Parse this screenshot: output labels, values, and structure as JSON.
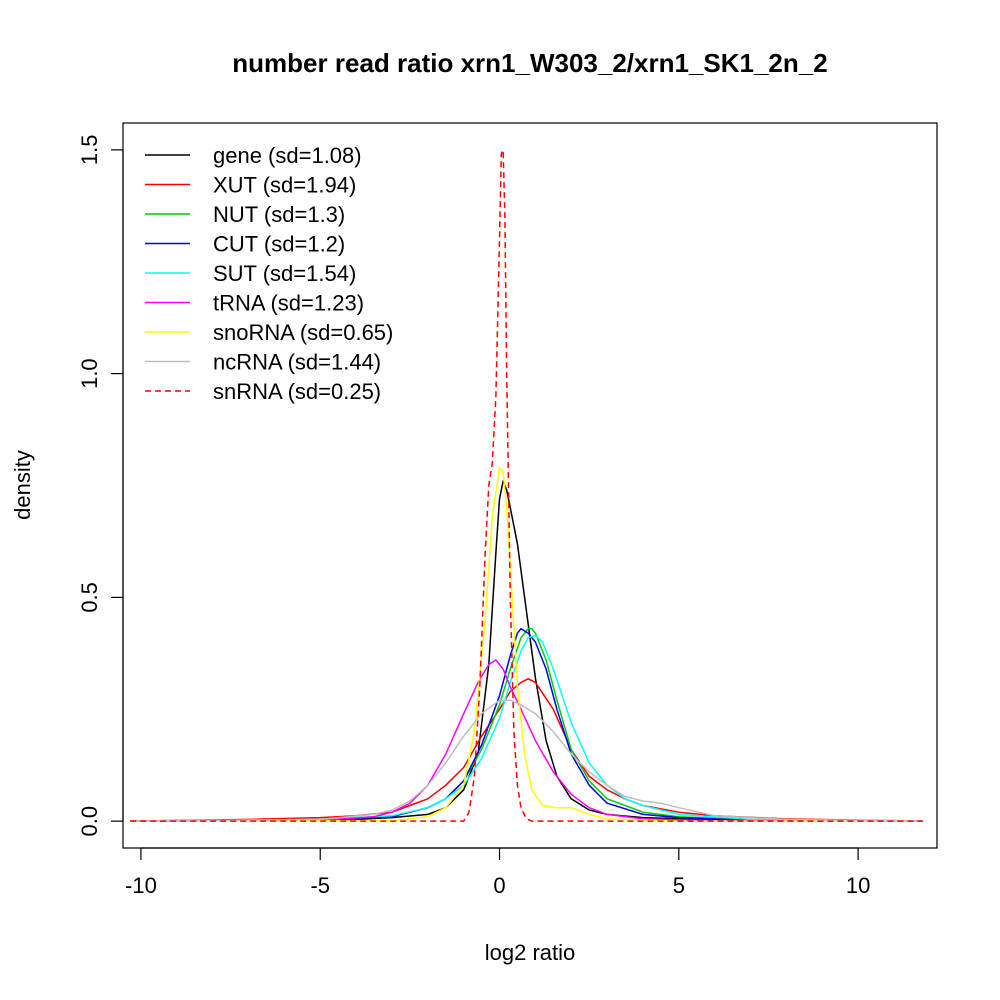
{
  "chart_data": {
    "type": "line",
    "title": "number read ratio xrn1_W303_2/xrn1_SK1_2n_2",
    "xlabel": "log2 ratio",
    "ylabel": "density",
    "xlim": [
      -10.5,
      12.2
    ],
    "ylim": [
      -0.06,
      1.56
    ],
    "xticks": [
      -10,
      -5,
      0,
      5,
      10
    ],
    "xtick_labels": [
      "-10",
      "-5",
      "0",
      "5",
      "10"
    ],
    "yticks": [
      0.0,
      0.5,
      1.0,
      1.5
    ],
    "ytick_labels": [
      "0.0",
      "0.5",
      "1.0",
      "1.5"
    ],
    "legend_position": "top-left",
    "grid": false,
    "series": [
      {
        "name": "gene (sd=1.08)",
        "color": "#000000",
        "dash": "solid",
        "x": [
          -10.3,
          -6,
          -4,
          -3,
          -2,
          -1.5,
          -1,
          -0.6,
          -0.3,
          -0.1,
          0,
          0.1,
          0.2,
          0.3,
          0.5,
          0.7,
          1,
          1.3,
          1.6,
          2,
          2.5,
          3,
          4,
          6,
          11.8
        ],
        "y": [
          0,
          0.002,
          0.004,
          0.008,
          0.015,
          0.03,
          0.07,
          0.15,
          0.35,
          0.6,
          0.72,
          0.76,
          0.74,
          0.7,
          0.62,
          0.5,
          0.32,
          0.18,
          0.1,
          0.05,
          0.025,
          0.015,
          0.008,
          0.003,
          0
        ]
      },
      {
        "name": "XUT (sd=1.94)",
        "color": "#ff0000",
        "dash": "solid",
        "x": [
          -10.3,
          -7,
          -5,
          -4,
          -3,
          -2.5,
          -2,
          -1.5,
          -1,
          -0.5,
          0,
          0.3,
          0.6,
          0.8,
          1,
          1.5,
          2,
          2.5,
          3,
          3.5,
          4,
          5,
          6,
          8,
          11.8
        ],
        "y": [
          0,
          0.004,
          0.008,
          0.012,
          0.02,
          0.035,
          0.05,
          0.08,
          0.12,
          0.19,
          0.25,
          0.29,
          0.31,
          0.318,
          0.31,
          0.25,
          0.16,
          0.1,
          0.07,
          0.05,
          0.035,
          0.02,
          0.012,
          0.005,
          0
        ]
      },
      {
        "name": "NUT (sd=1.3)",
        "color": "#00cc00",
        "dash": "solid",
        "x": [
          -10.3,
          -5,
          -3,
          -2,
          -1.5,
          -1,
          -0.5,
          0,
          0.3,
          0.6,
          0.8,
          0.9,
          1,
          1.3,
          1.6,
          2,
          2.5,
          3,
          4,
          5,
          7,
          11.8
        ],
        "y": [
          0,
          0.003,
          0.01,
          0.03,
          0.05,
          0.09,
          0.16,
          0.26,
          0.34,
          0.41,
          0.43,
          0.43,
          0.42,
          0.36,
          0.27,
          0.16,
          0.09,
          0.05,
          0.02,
          0.01,
          0.003,
          0
        ]
      },
      {
        "name": "CUT (sd=1.2)",
        "color": "#0000ff",
        "dash": "solid",
        "x": [
          -10.3,
          -5,
          -3,
          -2,
          -1.5,
          -1,
          -0.5,
          0,
          0.3,
          0.5,
          0.6,
          0.8,
          1,
          1.3,
          1.6,
          2,
          2.5,
          3,
          4,
          5,
          7,
          11.8
        ],
        "y": [
          0,
          0.003,
          0.01,
          0.03,
          0.05,
          0.09,
          0.17,
          0.28,
          0.37,
          0.42,
          0.43,
          0.42,
          0.4,
          0.34,
          0.25,
          0.15,
          0.08,
          0.04,
          0.015,
          0.008,
          0.002,
          0
        ]
      },
      {
        "name": "SUT (sd=1.54)",
        "color": "#00ffff",
        "dash": "solid",
        "x": [
          -10.3,
          -5,
          -3,
          -2,
          -1.5,
          -1,
          -0.5,
          0,
          0.3,
          0.6,
          0.8,
          1,
          1.2,
          1.5,
          2,
          2.5,
          3,
          3.5,
          4,
          5,
          7,
          11.8
        ],
        "y": [
          0,
          0.004,
          0.012,
          0.03,
          0.05,
          0.08,
          0.14,
          0.23,
          0.31,
          0.38,
          0.41,
          0.415,
          0.4,
          0.34,
          0.22,
          0.13,
          0.08,
          0.05,
          0.035,
          0.015,
          0.004,
          0
        ]
      },
      {
        "name": "tRNA (sd=1.23)",
        "color": "#ff00ff",
        "dash": "solid",
        "x": [
          -10.3,
          -5,
          -3.5,
          -3,
          -2.5,
          -2,
          -1.5,
          -1,
          -0.6,
          -0.3,
          -0.1,
          0.1,
          0.3,
          0.6,
          1,
          1.5,
          2,
          2.5,
          3,
          4,
          6,
          11.8
        ],
        "y": [
          0,
          0.002,
          0.01,
          0.02,
          0.04,
          0.08,
          0.15,
          0.24,
          0.31,
          0.35,
          0.36,
          0.34,
          0.3,
          0.25,
          0.18,
          0.11,
          0.06,
          0.03,
          0.015,
          0.005,
          0.001,
          0
        ]
      },
      {
        "name": "snoRNA (sd=0.65)",
        "color": "#ffff00",
        "dash": "solid",
        "x": [
          -10.3,
          -3,
          -2,
          -1.5,
          -1,
          -0.7,
          -0.4,
          -0.2,
          0,
          0.1,
          0.2,
          0.35,
          0.5,
          0.7,
          0.9,
          1.2,
          1.6,
          2,
          2.5,
          3,
          5,
          11.8
        ],
        "y": [
          0,
          0.001,
          0.01,
          0.03,
          0.08,
          0.2,
          0.45,
          0.68,
          0.79,
          0.78,
          0.7,
          0.5,
          0.3,
          0.15,
          0.07,
          0.035,
          0.03,
          0.03,
          0.015,
          0.005,
          0,
          0
        ]
      },
      {
        "name": "ncRNA (sd=1.44)",
        "color": "#bebebe",
        "dash": "solid",
        "x": [
          -10.3,
          -5,
          -3.5,
          -3,
          -2.5,
          -2,
          -1.5,
          -1,
          -0.5,
          0,
          0.3,
          0.6,
          1,
          1.5,
          2,
          2.5,
          3,
          3.5,
          4,
          4.5,
          5,
          6,
          8,
          11.8
        ],
        "y": [
          0,
          0.004,
          0.015,
          0.025,
          0.045,
          0.08,
          0.13,
          0.19,
          0.24,
          0.27,
          0.27,
          0.26,
          0.24,
          0.2,
          0.15,
          0.11,
          0.08,
          0.055,
          0.045,
          0.04,
          0.03,
          0.012,
          0.004,
          0
        ]
      },
      {
        "name": "snRNA (sd=0.25)",
        "color": "#ff0000",
        "dash": "dashed",
        "x": [
          -10.3,
          -1.0,
          -0.85,
          -0.7,
          -0.55,
          -0.4,
          -0.3,
          -0.2,
          -0.1,
          0,
          0.05,
          0.1,
          0.15,
          0.2,
          0.3,
          0.4,
          0.5,
          0.6,
          0.75,
          0.9,
          11.8
        ],
        "y": [
          0,
          0,
          0.02,
          0.1,
          0.3,
          0.6,
          0.75,
          0.8,
          0.95,
          1.3,
          1.49,
          1.5,
          1.35,
          1.0,
          0.5,
          0.2,
          0.08,
          0.03,
          0.005,
          0,
          0
        ]
      }
    ]
  }
}
